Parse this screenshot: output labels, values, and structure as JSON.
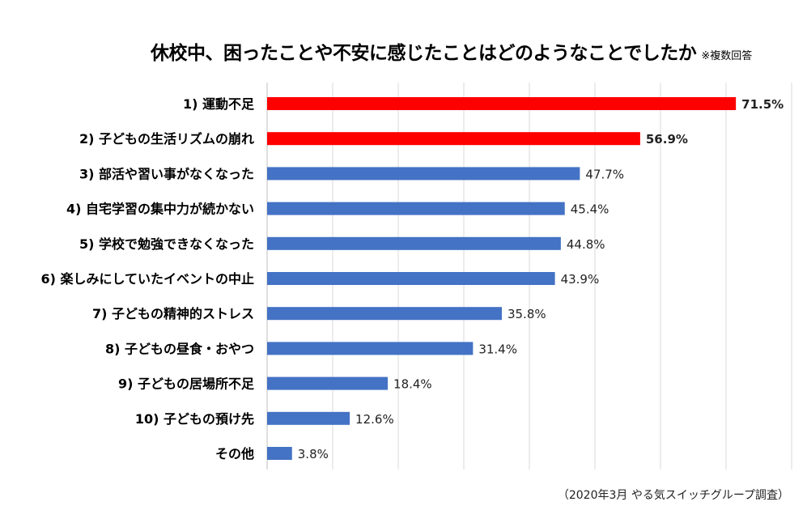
{
  "chart_data": {
    "type": "bar",
    "orientation": "horizontal",
    "title": "休校中、困ったことや不安に感じたことはどのようなことでしたか",
    "subtitle": "※複数回答",
    "source": "（2020年3月 やる気スイッチグループ調査）",
    "categories": [
      "1) 運動不足",
      "2) 子どもの生活リズムの崩れ",
      "3) 部活や習い事がなくなった",
      "4) 自宅学習の集中力が続かない",
      "5) 学校で勉強できなくなった",
      "6) 楽しみにしていたイベントの中止",
      "7) 子どもの精神的ストレス",
      "8) 子どもの昼食・おやつ",
      "9) 子どもの居場所不足",
      "10) 子どもの預け先",
      "その他"
    ],
    "values": [
      71.5,
      56.9,
      47.7,
      45.4,
      44.8,
      43.9,
      35.8,
      31.4,
      18.4,
      12.6,
      3.8
    ],
    "data_labels": [
      "71.5%",
      "56.9%",
      "47.7%",
      "45.4%",
      "44.8%",
      "43.9%",
      "35.8%",
      "31.4%",
      "18.4%",
      "12.6%",
      "3.8%"
    ],
    "highlight_top": 2,
    "xlim": [
      0,
      80
    ],
    "grid": true,
    "colors": {
      "highlight": "#FF0000",
      "default": "#4472C4",
      "grid": "#D9D9D9"
    }
  }
}
